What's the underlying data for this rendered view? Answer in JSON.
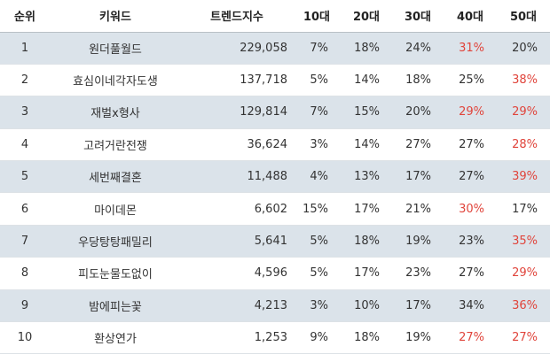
{
  "colors": {
    "row_shade": "#dbe3ea",
    "highlight": "#e0443b",
    "text": "#333333"
  },
  "table": {
    "headers": {
      "rank": "순위",
      "keyword": "키워드",
      "trend": "트렌드지수",
      "age10": "10대",
      "age20": "20대",
      "age30": "30대",
      "age40": "40대",
      "age50": "50대"
    },
    "rows": [
      {
        "rank": "1",
        "keyword": "원더풀월드",
        "trend": "229,058",
        "age10": "7%",
        "age20": "18%",
        "age30": "24%",
        "age40": "31%",
        "age50": "20%",
        "hi40": true,
        "hi50": false
      },
      {
        "rank": "2",
        "keyword": "효심이네각자도생",
        "trend": "137,718",
        "age10": "5%",
        "age20": "14%",
        "age30": "18%",
        "age40": "25%",
        "age50": "38%",
        "hi40": false,
        "hi50": true
      },
      {
        "rank": "3",
        "keyword": "재벌x형사",
        "trend": "129,814",
        "age10": "7%",
        "age20": "15%",
        "age30": "20%",
        "age40": "29%",
        "age50": "29%",
        "hi40": true,
        "hi50": true
      },
      {
        "rank": "4",
        "keyword": "고려거란전쟁",
        "trend": "36,624",
        "age10": "3%",
        "age20": "14%",
        "age30": "27%",
        "age40": "27%",
        "age50": "28%",
        "hi40": false,
        "hi50": true
      },
      {
        "rank": "5",
        "keyword": "세번째결혼",
        "trend": "11,488",
        "age10": "4%",
        "age20": "13%",
        "age30": "17%",
        "age40": "27%",
        "age50": "39%",
        "hi40": false,
        "hi50": true
      },
      {
        "rank": "6",
        "keyword": "마이데몬",
        "trend": "6,602",
        "age10": "15%",
        "age20": "17%",
        "age30": "21%",
        "age40": "30%",
        "age50": "17%",
        "hi40": true,
        "hi50": false
      },
      {
        "rank": "7",
        "keyword": "우당탕탕패밀리",
        "trend": "5,641",
        "age10": "5%",
        "age20": "18%",
        "age30": "19%",
        "age40": "23%",
        "age50": "35%",
        "hi40": false,
        "hi50": true
      },
      {
        "rank": "8",
        "keyword": "피도눈물도없이",
        "trend": "4,596",
        "age10": "5%",
        "age20": "17%",
        "age30": "23%",
        "age40": "27%",
        "age50": "29%",
        "hi40": false,
        "hi50": true
      },
      {
        "rank": "9",
        "keyword": "밤에피는꽃",
        "trend": "4,213",
        "age10": "3%",
        "age20": "10%",
        "age30": "17%",
        "age40": "34%",
        "age50": "36%",
        "hi40": false,
        "hi50": true
      },
      {
        "rank": "10",
        "keyword": "환상연가",
        "trend": "1,253",
        "age10": "9%",
        "age20": "18%",
        "age30": "19%",
        "age40": "27%",
        "age50": "27%",
        "hi40": true,
        "hi50": true
      }
    ]
  }
}
